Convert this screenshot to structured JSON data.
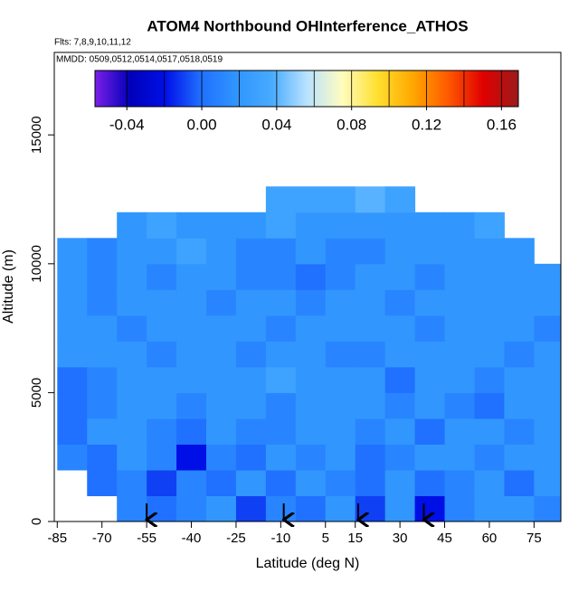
{
  "chart_data": {
    "type": "heatmap",
    "title": "ATOM4 Northbound OHInterference_ATHOS",
    "subtitle": "Flts: 7,8,9,10,11,12",
    "annotation": "MMDD: 0509,0512,0514,0517,0518,0519",
    "xlabel": "Latitude (deg N)",
    "ylabel": "Altitude (m)",
    "xlim": [
      -86,
      84
    ],
    "ylim": [
      0,
      18200
    ],
    "xticks": [
      -85,
      -70,
      -55,
      -40,
      -25,
      -10,
      5,
      15,
      30,
      45,
      60,
      75
    ],
    "yticks": [
      0,
      5000,
      10000,
      15000
    ],
    "clim": [
      -0.057,
      0.169
    ],
    "cticks": [
      -0.04,
      {
        "value": 0,
        "label": "0.00"
      },
      0.04,
      0.08,
      0.12,
      0.16
    ],
    "contour_levels": [
      -0.04,
      -0.02,
      0,
      0.02,
      0.04,
      0.06,
      0.08,
      0.1,
      0.12,
      0.14,
      0.16
    ],
    "colormap": [
      "#7b1fe8",
      "#0000b8",
      "#0010e8",
      "#2070ff",
      "#2f95ff",
      "#48aaff",
      "#b8e2ff",
      "#fffcc0",
      "#ffe030",
      "#ffa800",
      "#ff5a00",
      "#e00000",
      "#9b1b1b"
    ],
    "markers": [
      -55,
      -9,
      16,
      38
    ],
    "xbins": [
      -85,
      -75,
      -65,
      -55,
      -45,
      -35,
      -25,
      -15,
      -5,
      5,
      15,
      25,
      35,
      45,
      55,
      65,
      75,
      85
    ],
    "ybins": [
      0,
      1000,
      2000,
      3000,
      4000,
      5000,
      6000,
      7000,
      8000,
      9000,
      10000,
      11000,
      12000,
      13000
    ],
    "values": [
      [
        null,
        null,
        0.01,
        0.0,
        0.01,
        0.02,
        -0.01,
        0.01,
        0.0,
        0.02,
        -0.01,
        0.02,
        -0.02,
        0.01,
        0.02,
        0.02,
        0.01
      ],
      [
        null,
        0.0,
        0.01,
        -0.01,
        0.01,
        0.0,
        0.02,
        0.0,
        0.02,
        0.01,
        0.0,
        0.02,
        0.0,
        0.01,
        0.02,
        0.0,
        0.02
      ],
      [
        0.01,
        0.0,
        0.02,
        0.01,
        -0.02,
        0.01,
        0.0,
        0.02,
        0.01,
        0.02,
        0.0,
        0.01,
        0.02,
        0.02,
        0.01,
        0.02,
        0.02
      ],
      [
        0.0,
        0.02,
        0.02,
        0.01,
        0.0,
        0.02,
        0.01,
        0.01,
        0.02,
        0.02,
        0.01,
        0.02,
        0.0,
        0.02,
        0.02,
        0.01,
        0.02
      ],
      [
        0.0,
        0.01,
        0.02,
        0.02,
        0.01,
        0.02,
        0.02,
        0.01,
        0.02,
        0.02,
        0.02,
        0.01,
        0.02,
        0.01,
        0.0,
        0.02,
        0.02
      ],
      [
        0.0,
        0.01,
        0.02,
        0.02,
        0.02,
        0.02,
        0.02,
        0.03,
        0.02,
        0.02,
        0.02,
        0.0,
        0.02,
        0.02,
        0.01,
        0.02,
        0.02
      ],
      [
        0.02,
        0.02,
        0.02,
        0.01,
        0.02,
        0.02,
        0.01,
        0.02,
        0.02,
        0.01,
        0.01,
        0.02,
        0.02,
        0.02,
        0.02,
        0.01,
        0.02
      ],
      [
        0.02,
        0.02,
        0.01,
        0.02,
        0.02,
        0.02,
        0.02,
        0.01,
        0.02,
        0.02,
        0.02,
        0.02,
        0.01,
        0.02,
        0.02,
        0.02,
        0.01
      ],
      [
        0.02,
        0.01,
        0.02,
        0.02,
        0.02,
        0.01,
        0.02,
        0.02,
        0.01,
        0.02,
        0.02,
        0.01,
        0.02,
        0.02,
        0.02,
        0.02,
        0.02
      ],
      [
        0.02,
        0.01,
        0.02,
        0.01,
        0.02,
        0.02,
        0.01,
        0.01,
        0.0,
        0.01,
        0.02,
        0.02,
        0.01,
        0.02,
        0.02,
        0.02,
        0.02
      ],
      [
        0.02,
        0.01,
        0.02,
        0.02,
        0.03,
        0.02,
        0.01,
        0.01,
        0.02,
        0.01,
        0.01,
        0.02,
        0.02,
        0.02,
        0.02,
        0.02,
        null
      ],
      [
        null,
        null,
        0.02,
        0.03,
        0.02,
        0.02,
        0.02,
        0.03,
        0.02,
        0.02,
        0.02,
        0.02,
        0.02,
        0.02,
        0.03,
        null,
        null
      ],
      [
        null,
        null,
        null,
        null,
        null,
        null,
        null,
        0.03,
        0.03,
        0.03,
        0.04,
        0.03,
        null,
        null,
        null,
        null,
        null
      ]
    ]
  }
}
